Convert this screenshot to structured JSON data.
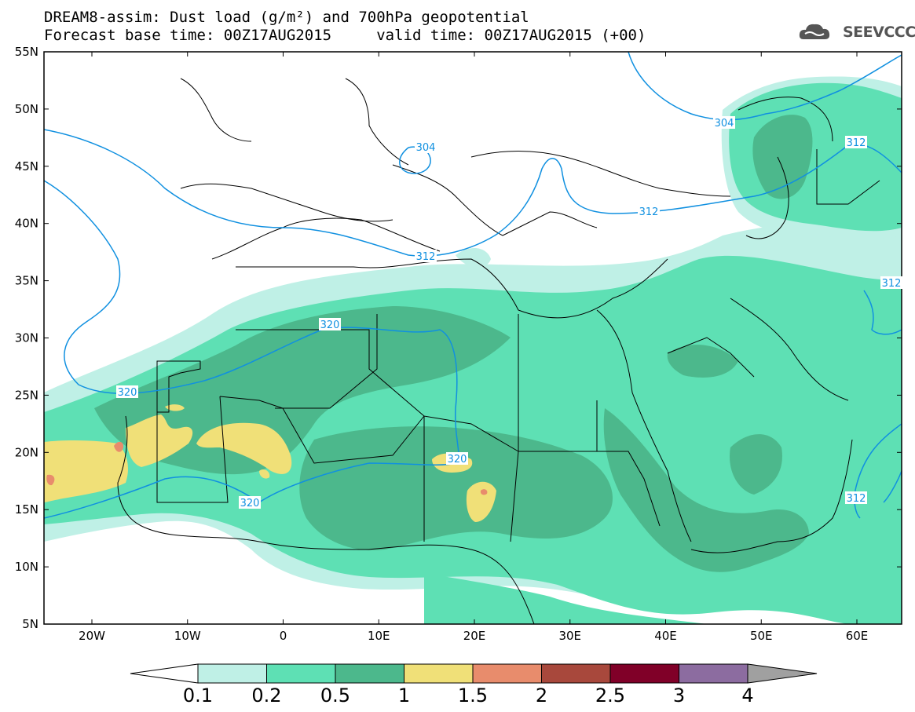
{
  "header": {
    "title_line1": "DREAM8-assim: Dust load (g/m²) and 700hPa geopotential",
    "title_line2": "Forecast base time: 00Z17AUG2015     valid time: 00Z17AUG2015 (+00)",
    "logo_text": "SEEVCCC"
  },
  "map": {
    "lat_labels": [
      "55N",
      "50N",
      "45N",
      "40N",
      "35N",
      "30N",
      "25N",
      "20N",
      "15N",
      "10N",
      "5N"
    ],
    "lon_labels": [
      "20W",
      "10W",
      "0",
      "10E",
      "20E",
      "30E",
      "40E",
      "50E",
      "60E"
    ],
    "contour_labels": [
      "304",
      "304",
      "312",
      "312",
      "312",
      "312",
      "320",
      "320",
      "320",
      "320",
      "312"
    ],
    "colors": {
      "level_0_1": "#bff0e6",
      "level_0_2": "#5ee0b4",
      "level_0_5": "#4cb88c",
      "level_1": "#f0e078",
      "level_1_5": "#e88c6c",
      "level_2": "#a8483c",
      "level_2_5": "#800028",
      "level_3": "#8c6ca0",
      "level_4": "#a0a0a0",
      "contour": "#1090e0",
      "border": "#000000"
    }
  },
  "colorbar": {
    "labels": [
      "0.1",
      "0.2",
      "0.5",
      "1",
      "1.5",
      "2",
      "2.5",
      "3",
      "4"
    ]
  }
}
